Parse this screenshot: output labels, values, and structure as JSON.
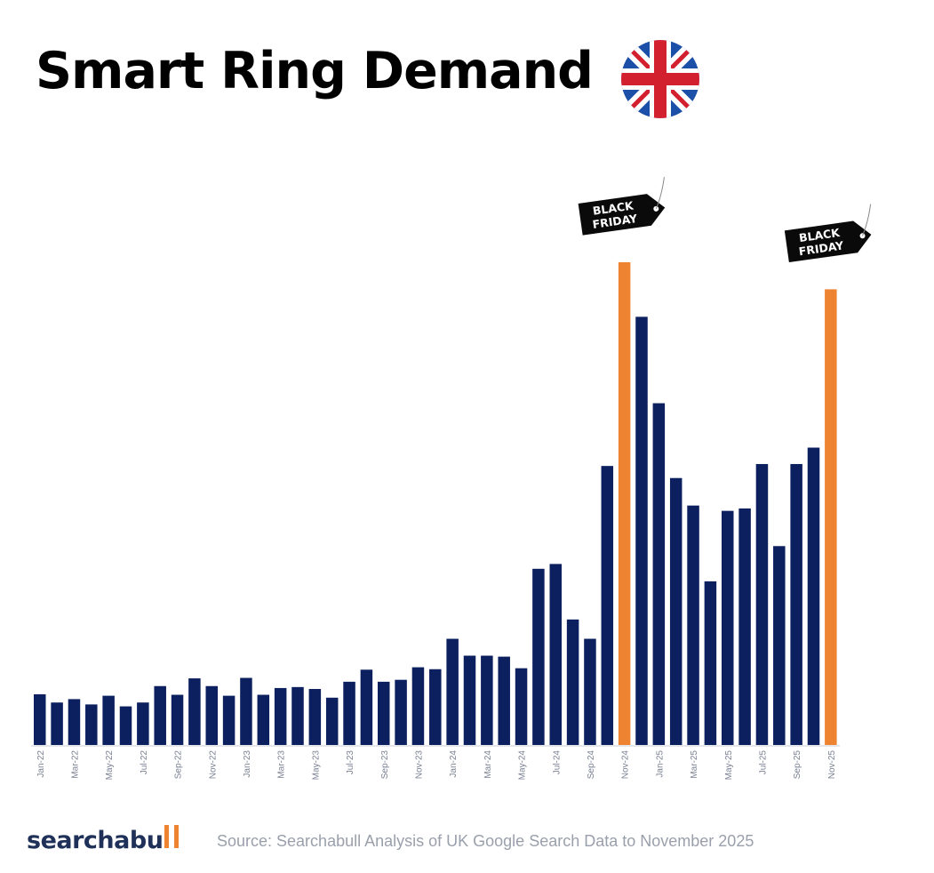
{
  "title": "Smart Ring Demand",
  "flag_icon": "uk-flag-icon",
  "brand": {
    "text": "searchabu",
    "accent_color": "#ee8431",
    "text_color": "#1f3158"
  },
  "source": "Source: Searchabull Analysis of UK Google Search Data to November 2025",
  "callouts": [
    {
      "text_line1": "BLACK",
      "text_line2": "FRIDAY",
      "category": "Nov-24"
    },
    {
      "text_line1": "BLACK",
      "text_line2": "FRIDAY",
      "category": "Nov-25"
    }
  ],
  "chart_data": {
    "type": "bar",
    "title": "Smart Ring Demand",
    "xlabel": "",
    "ylabel": "",
    "ylim": [
      0,
      100
    ],
    "colors": {
      "default": "#0c1f5e",
      "highlight": "#ee8431"
    },
    "highlight_categories": [
      "Nov-24",
      "Nov-25"
    ],
    "categories": [
      "Jan-22",
      "Feb-22",
      "Mar-22",
      "Apr-22",
      "May-22",
      "Jun-22",
      "Jul-22",
      "Aug-22",
      "Sep-22",
      "Oct-22",
      "Nov-22",
      "Dec-22",
      "Jan-23",
      "Feb-23",
      "Mar-23",
      "Apr-23",
      "May-23",
      "Jun-23",
      "Jul-23",
      "Aug-23",
      "Sep-23",
      "Oct-23",
      "Nov-23",
      "Dec-23",
      "Jan-24",
      "Feb-24",
      "Mar-24",
      "Apr-24",
      "May-24",
      "Jun-24",
      "Jul-24",
      "Aug-24",
      "Sep-24",
      "Oct-24",
      "Nov-24",
      "Dec-24",
      "Jan-25",
      "Feb-25",
      "Mar-25",
      "Apr-25",
      "May-25",
      "Jun-25",
      "Jul-25",
      "Aug-25",
      "Sep-25",
      "Oct-25",
      "Nov-25"
    ],
    "tick_labels": [
      "Jan-22",
      "Mar-22",
      "May-22",
      "Jul-22",
      "Sep-22",
      "Nov-22",
      "Jan-23",
      "Mar-23",
      "May-23",
      "Jul-23",
      "Sep-23",
      "Nov-23",
      "Jan-24",
      "Mar-24",
      "May-24",
      "Jul-24",
      "Sep-24",
      "Nov-24",
      "Jan-25",
      "Mar-25",
      "May-25",
      "Jul-25",
      "Sep-25",
      "Nov-25"
    ],
    "values": [
      10.5,
      8.8,
      9.5,
      8.4,
      10.2,
      8.0,
      8.8,
      12.2,
      10.4,
      13.8,
      12.2,
      10.2,
      13.9,
      10.4,
      11.8,
      12.0,
      11.6,
      9.8,
      13.1,
      15.6,
      13.1,
      13.5,
      16.1,
      15.7,
      22.0,
      18.5,
      18.5,
      18.3,
      15.9,
      36.5,
      37.5,
      26.0,
      22.0,
      57.8,
      100.0,
      88.7,
      70.8,
      55.3,
      49.6,
      33.9,
      48.5,
      49.0,
      58.2,
      41.2,
      58.2,
      61.6,
      94.4
    ]
  }
}
